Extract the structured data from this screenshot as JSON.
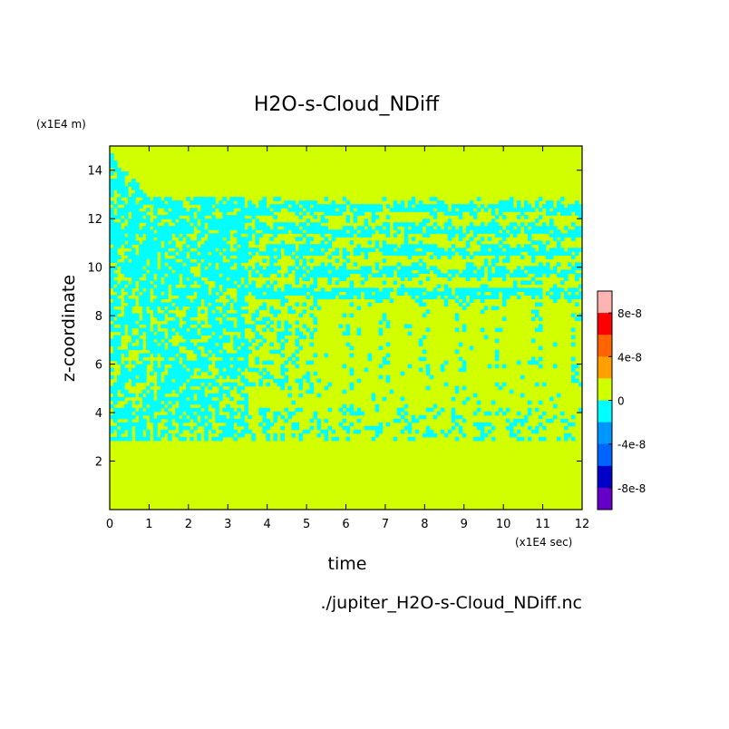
{
  "chart_data": {
    "type": "heatmap",
    "title": "H2O-s-Cloud_NDiff",
    "xlabel": "time",
    "ylabel": "z-coordinate",
    "x_unit_label": "(x1E4 sec)",
    "y_unit_label": "(x1E4 m)",
    "file_label": "./jupiter_H2O-s-Cloud_NDiff.nc",
    "xlim": [
      0,
      12
    ],
    "ylim": [
      0,
      15
    ],
    "x_ticks": [
      "0",
      "1",
      "2",
      "3",
      "4",
      "5",
      "6",
      "7",
      "8",
      "9",
      "10",
      "11",
      "12"
    ],
    "y_ticks": [
      "2",
      "4",
      "6",
      "8",
      "10",
      "12",
      "14"
    ],
    "colorbar": {
      "ticks": [
        "8e-8",
        "4e-8",
        "0",
        "-4e-8",
        "-8e-8"
      ],
      "levels": [
        {
          "from": 8e-08,
          "to": 1e-07,
          "color": "#ffb4b4"
        },
        {
          "from": 6e-08,
          "to": 8e-08,
          "color": "#ff0000"
        },
        {
          "from": 4e-08,
          "to": 6e-08,
          "color": "#ff6400"
        },
        {
          "from": 2e-08,
          "to": 4e-08,
          "color": "#ffa000"
        },
        {
          "from": 0,
          "to": 2e-08,
          "color": "#d2ff00"
        },
        {
          "from": -2e-08,
          "to": 0,
          "color": "#00ffff"
        },
        {
          "from": -4e-08,
          "to": -2e-08,
          "color": "#0096ff"
        },
        {
          "from": -6e-08,
          "to": -4e-08,
          "color": "#0064ff"
        },
        {
          "from": -8e-08,
          "to": -6e-08,
          "color": "#0000c8"
        },
        {
          "from": -1e-07,
          "to": -8e-08,
          "color": "#6400c8"
        }
      ]
    },
    "field_description_values": {
      "background_level": 0,
      "negative_band_level": -1e-08,
      "active_layer_z": [
        2.8,
        12.9
      ],
      "upper_boundary_z_start": 14.8,
      "upper_boundary_z_end": 12.9
    }
  }
}
